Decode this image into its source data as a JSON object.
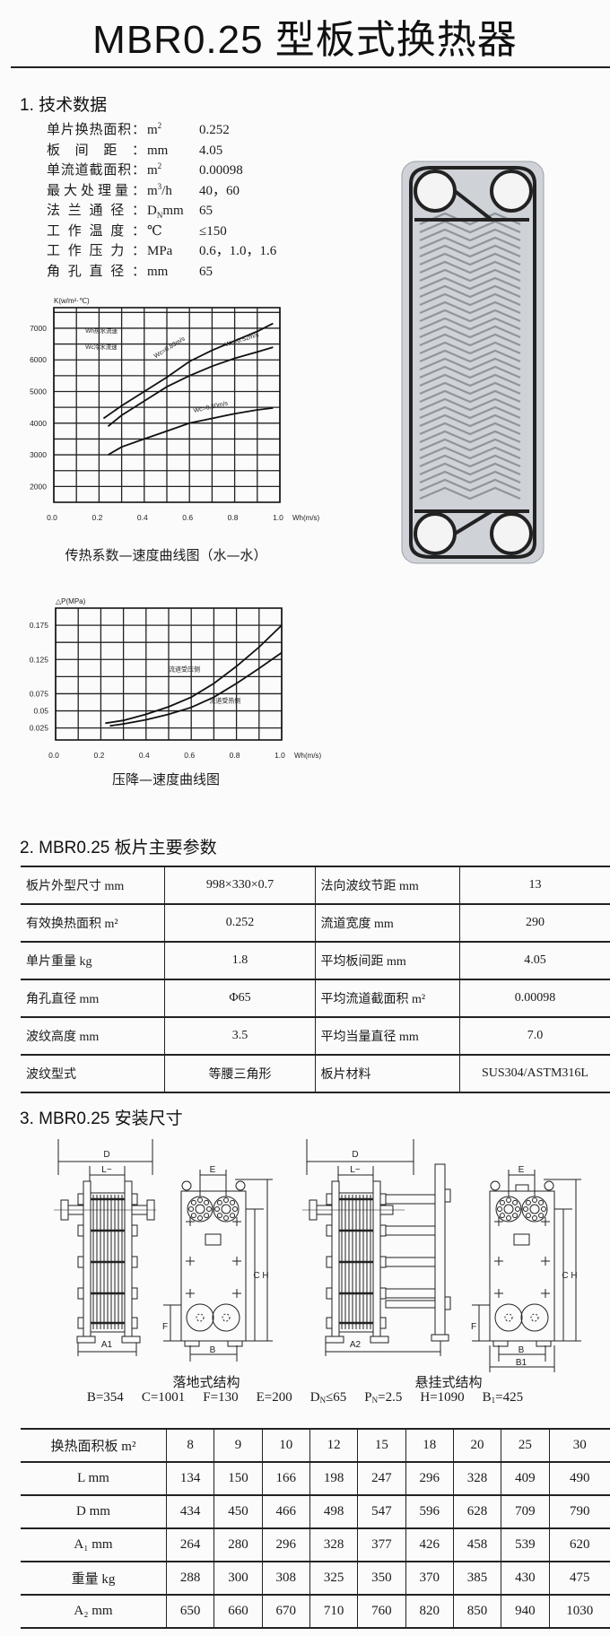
{
  "title": "MBR0.25 型板式换热器",
  "section1": {
    "heading": "1. 技术数据",
    "specs": [
      {
        "label": "单片换热面积：",
        "unit": "m",
        "sup": "2",
        "sub": "",
        "suffix": "",
        "value": "0.252"
      },
      {
        "label": "板间距：",
        "unit": "mm",
        "sup": "",
        "sub": "",
        "suffix": "",
        "value": "4.05"
      },
      {
        "label": "单流道截面积：",
        "unit": "m",
        "sup": "2",
        "sub": "",
        "suffix": "",
        "value": "0.00098"
      },
      {
        "label": "最大处理量：",
        "unit": "m",
        "sup": "3",
        "sub": "",
        "suffix": "/h",
        "value": "40，60"
      },
      {
        "label": "法兰通径：",
        "unit": "D",
        "sup": "",
        "sub": "N",
        "suffix": "mm",
        "value": "65"
      },
      {
        "label": "工作温度：",
        "unit": "℃",
        "sup": "",
        "sub": "",
        "suffix": "",
        "value": "≤150"
      },
      {
        "label": "工作压力：",
        "unit": "MPa",
        "sup": "",
        "sub": "",
        "suffix": "",
        "value": "0.6，1.0，1.6"
      },
      {
        "label": "角孔直径：",
        "unit": "mm",
        "sup": "",
        "sub": "",
        "suffix": "",
        "value": "65"
      }
    ]
  },
  "chart_data": [
    {
      "type": "line",
      "title": "传热系数—速度曲线图（水—水）",
      "ylabel": "K(w/m²·℃)",
      "xlabel": "Wh(m/s)",
      "xlim": [
        0,
        1.0
      ],
      "ylim": [
        1500,
        7650
      ],
      "grid": true,
      "x_ticks": [
        "0.0",
        "0.2",
        "0.4",
        "0.6",
        "0.8",
        "1.0"
      ],
      "y_ticks": [
        "2000",
        "3000",
        "4000",
        "5000",
        "6000",
        "7000"
      ],
      "legend_text": [
        "Wh热水流速",
        "Wc冷水流速"
      ],
      "series": [
        {
          "name": "Wc=0.83m/s",
          "x": [
            0.22,
            0.3,
            0.4,
            0.5,
            0.6,
            0.7,
            0.8,
            0.9,
            0.97
          ],
          "y": [
            4150,
            4550,
            5000,
            5450,
            5950,
            6300,
            6600,
            6900,
            7150
          ]
        },
        {
          "name": "Wc=0.52m/s",
          "x": [
            0.24,
            0.3,
            0.4,
            0.5,
            0.6,
            0.7,
            0.8,
            0.9,
            0.97
          ],
          "y": [
            3900,
            4250,
            4700,
            5150,
            5500,
            5800,
            6050,
            6250,
            6400
          ]
        },
        {
          "name": "Wc=0.20m/s",
          "x": [
            0.24,
            0.3,
            0.4,
            0.5,
            0.6,
            0.7,
            0.8,
            0.9,
            0.97
          ],
          "y": [
            3000,
            3250,
            3500,
            3750,
            4000,
            4150,
            4300,
            4420,
            4480
          ]
        }
      ]
    },
    {
      "type": "line",
      "title": "压降—速度曲线图",
      "ylabel": "△P(MPa)",
      "xlabel": "Wh(m/s)",
      "xlim": [
        0,
        1.0
      ],
      "ylim": [
        0.0075,
        0.2
      ],
      "grid": true,
      "x_ticks": [
        "0.0",
        "0.2",
        "0.4",
        "0.6",
        "0.8",
        "1.0"
      ],
      "y_ticks": [
        "0.025",
        "0.05",
        "0.075",
        "0.125",
        "0.175"
      ],
      "series": [
        {
          "name": "流道受压侧",
          "x": [
            0.22,
            0.3,
            0.4,
            0.5,
            0.6,
            0.7,
            0.8,
            0.9,
            1.0
          ],
          "y": [
            0.032,
            0.036,
            0.045,
            0.056,
            0.07,
            0.09,
            0.115,
            0.143,
            0.175
          ]
        },
        {
          "name": "流道受热侧",
          "x": [
            0.24,
            0.3,
            0.4,
            0.5,
            0.6,
            0.7,
            0.8,
            0.9,
            1.0
          ],
          "y": [
            0.028,
            0.031,
            0.037,
            0.045,
            0.055,
            0.07,
            0.09,
            0.112,
            0.135
          ]
        }
      ]
    }
  ],
  "section2": {
    "heading": "2. MBR0.25 板片主要参数",
    "rows": [
      [
        "板片外型尺寸 mm",
        "998×330×0.7",
        "法向波纹节距 mm",
        "13"
      ],
      [
        "有效换热面积 m²",
        "0.252",
        "流道宽度 mm",
        "290"
      ],
      [
        "单片重量 kg",
        "1.8",
        "平均板间距 mm",
        "4.05"
      ],
      [
        "角孔直径 mm",
        "Φ65",
        "平均流道截面积 m²",
        "0.00098"
      ],
      [
        "波纹高度 mm",
        "3.5",
        "平均当量直径 mm",
        "7.0"
      ],
      [
        "波纹型式",
        "等腰三角形",
        "板片材料",
        "SUS304/ASTM316L"
      ]
    ]
  },
  "section3": {
    "heading": "3. MBR0.25 安装尺寸",
    "floor_caption": "落地式结构",
    "hanging_caption": "悬挂式结构",
    "dim_labels": {
      "D": "D",
      "L": "L~",
      "E": "E",
      "CH": "C H",
      "F": "F",
      "A1": "A1",
      "A2": "A2",
      "B": "B",
      "B1": "B1"
    },
    "params": [
      {
        "main": "B=354",
        "sub": "",
        "rest": ""
      },
      {
        "main": "C=1001",
        "sub": "",
        "rest": ""
      },
      {
        "main": "F=130",
        "sub": "",
        "rest": ""
      },
      {
        "main": "E=200",
        "sub": "",
        "rest": ""
      },
      {
        "main": "D",
        "sub": "N",
        "rest": "≤65"
      },
      {
        "main": "P",
        "sub": "N",
        "rest": "=2.5"
      },
      {
        "main": "H=1090",
        "sub": "",
        "rest": ""
      },
      {
        "main": "B",
        "sub": "1",
        "rest": "=425"
      }
    ],
    "table": {
      "header": [
        "换热面积板 m²",
        "8",
        "9",
        "10",
        "12",
        "15",
        "18",
        "20",
        "25",
        "30"
      ],
      "rows": [
        [
          "L mm",
          "134",
          "150",
          "166",
          "198",
          "247",
          "296",
          "328",
          "409",
          "490"
        ],
        [
          "D mm",
          "434",
          "450",
          "466",
          "498",
          "547",
          "596",
          "628",
          "709",
          "790"
        ],
        [
          "A₁ mm",
          "264",
          "280",
          "296",
          "328",
          "377",
          "426",
          "458",
          "539",
          "620"
        ],
        [
          "重量 kg",
          "288",
          "300",
          "308",
          "325",
          "350",
          "370",
          "385",
          "430",
          "475"
        ],
        [
          "A₂ mm",
          "650",
          "660",
          "670",
          "710",
          "760",
          "820",
          "850",
          "940",
          "1030"
        ]
      ]
    }
  }
}
